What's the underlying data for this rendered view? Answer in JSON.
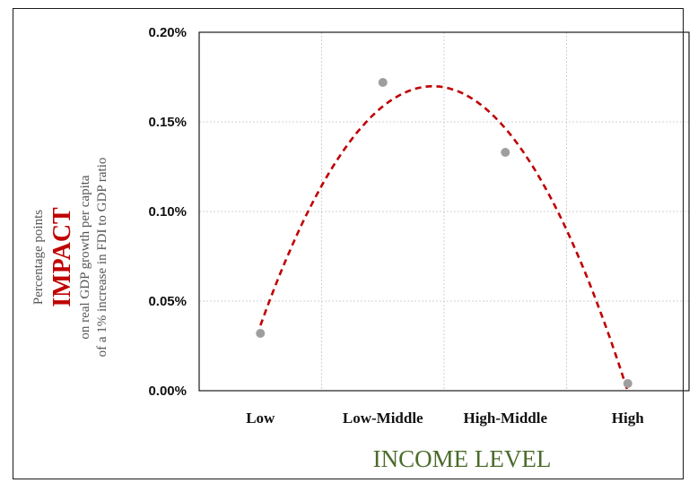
{
  "chart_data": {
    "type": "line",
    "xlabel": "INCOME LEVEL",
    "ylabel": {
      "line1": "Percentage points",
      "line2": "IMPACT",
      "line3": "on real GDP growth per capita",
      "line4": "of a 1% increase in FDI to GDP ratio"
    },
    "categories": [
      "Low",
      "Low-Middle",
      "High-Middle",
      "High"
    ],
    "series": [
      {
        "values": [
          0.032,
          0.172,
          0.133,
          0.004
        ],
        "color": "#9e9e9e",
        "style": "points"
      }
    ],
    "trendline": {
      "style": "dashed",
      "color": "#c00000",
      "type": "polynomial-order-2"
    },
    "ylim": [
      0,
      0.2
    ],
    "yticks": [
      "0.00%",
      "0.05%",
      "0.10%",
      "0.15%",
      "0.20%"
    ],
    "ytick_values": [
      0,
      0.05,
      0.1,
      0.15,
      0.2
    ],
    "grid": true
  }
}
